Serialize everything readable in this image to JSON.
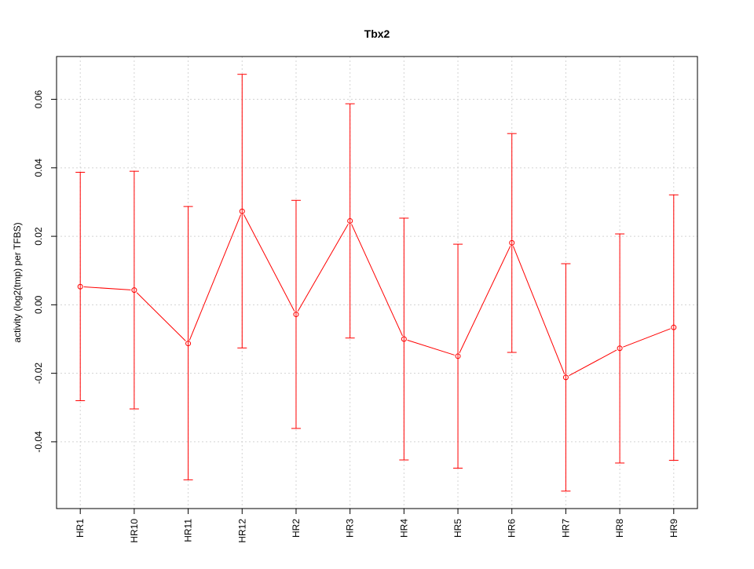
{
  "chart_data": {
    "type": "line",
    "title": "Tbx2",
    "xlabel": "",
    "ylabel": "activity (log2(tmp) per TFBS)",
    "categories": [
      "HR1",
      "HR10",
      "HR11",
      "HR12",
      "HR2",
      "HR3",
      "HR4",
      "HR5",
      "HR6",
      "HR7",
      "HR8",
      "HR9"
    ],
    "series": [
      {
        "values": [
          0.0053,
          0.0043,
          -0.0113,
          0.0273,
          -0.0028,
          0.0245,
          -0.01,
          -0.015,
          0.0181,
          -0.0212,
          -0.0127,
          -0.0066
        ],
        "error_upper": [
          0.0387,
          0.039,
          0.0287,
          0.0673,
          0.0305,
          0.0587,
          0.0253,
          0.0177,
          0.05,
          0.012,
          0.0207,
          0.0321
        ],
        "error_lower": [
          -0.028,
          -0.0304,
          -0.0511,
          -0.0126,
          -0.0361,
          -0.0097,
          -0.0453,
          -0.0477,
          -0.0139,
          -0.0544,
          -0.0462,
          -0.0454
        ],
        "color": "#ff0000"
      }
    ],
    "yticks": [
      -0.04,
      -0.02,
      0.0,
      0.02,
      0.04,
      0.06
    ],
    "ytick_labels": [
      "-0.04",
      "-0.02",
      "0.00",
      "0.02",
      "0.04",
      "0.06"
    ],
    "ylim": [
      -0.0595,
      0.0725
    ],
    "grid": true,
    "grid_color": "#d3d3d3",
    "line_color": "#ff0000"
  }
}
